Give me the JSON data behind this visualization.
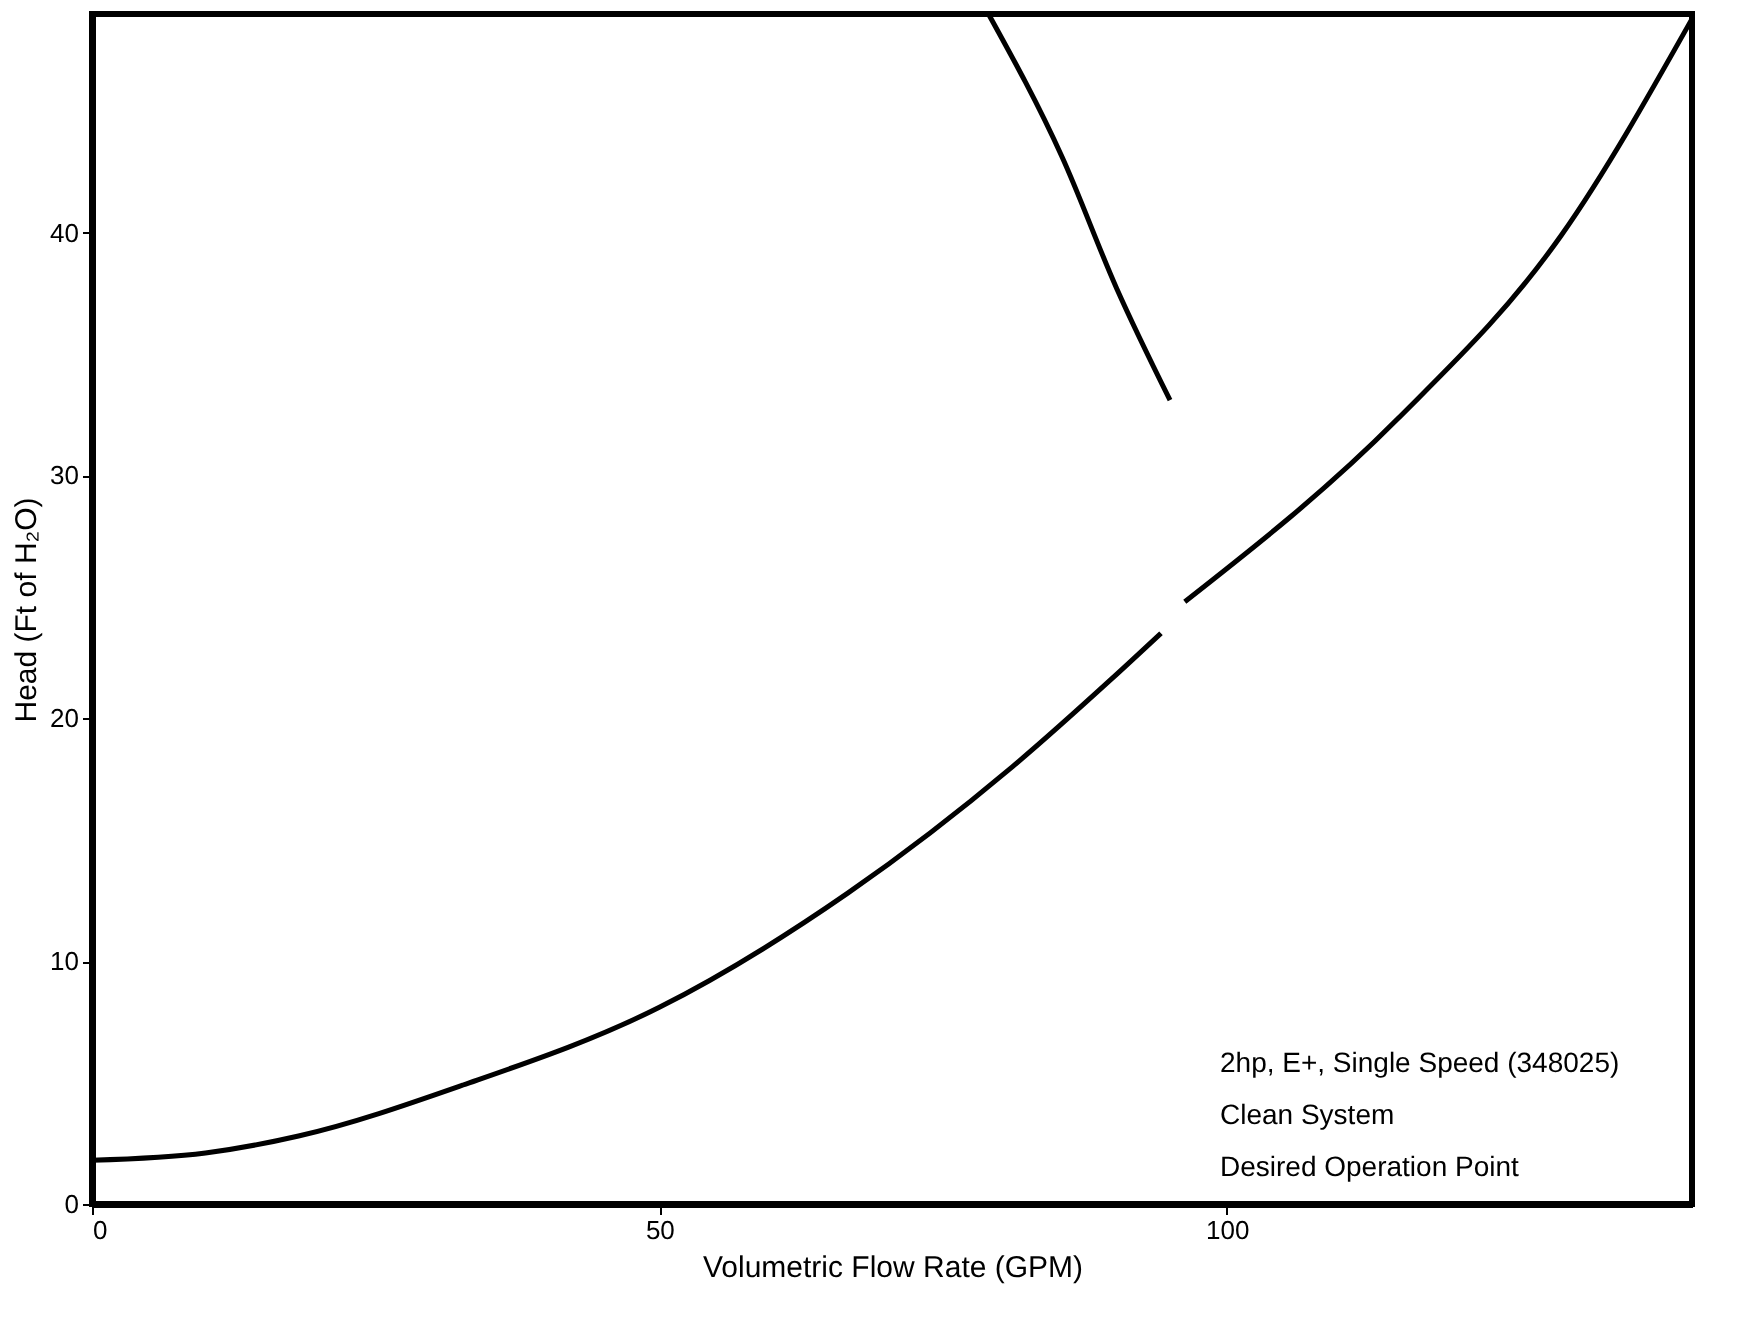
{
  "chart_data": {
    "type": "line",
    "xlabel": "Volumetric Flow Rate (GPM)",
    "ylabel": "Head (Ft of H₂O)",
    "series": [
      {
        "color": "#000000",
        "x": [
          79.0,
          85.5,
          90.3,
          95.0
        ],
        "values": [
          49,
          43.1,
          37.7,
          33.1
        ]
      },
      {
        "color": "#000000",
        "x": [
          0,
          10,
          18.2,
          32.7,
          50,
          66.6,
          81.1,
          89.8,
          94.2,
          95.2,
          96.3,
          115,
          129.5,
          141
        ],
        "values": [
          1.8,
          2.1,
          2.8,
          4.9,
          8.1,
          12.8,
          18.0,
          21.6,
          23.5,
          null,
          24.8,
          32.3,
          39.9,
          48.8
        ]
      }
    ],
    "xlim": [
      0,
      141
    ],
    "ylim": [
      0,
      49
    ],
    "xticks": [
      0,
      50,
      100
    ],
    "yticks": [
      0,
      10,
      20,
      30,
      40
    ],
    "grid": false,
    "marker": "none",
    "line_style": "solid",
    "annotations": [
      "2hp, E+, Single Speed (348025)",
      "Clean System",
      "Desired Operation Point"
    ]
  }
}
